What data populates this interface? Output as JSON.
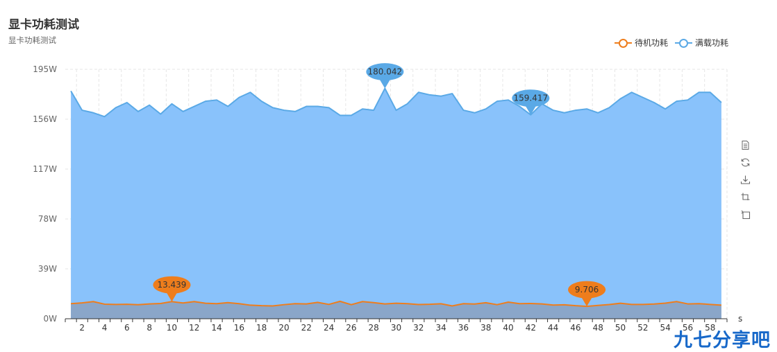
{
  "header": {
    "title": "显卡功耗测试",
    "subtitle": "显卡功耗测试"
  },
  "legend": [
    {
      "name": "待机功耗",
      "color": "#ee7d1c"
    },
    {
      "name": "满载功耗",
      "color": "#5aa9e6"
    }
  ],
  "toolbox": {
    "icons": [
      "data-view-icon",
      "restore-icon",
      "save-image-icon",
      "zoom-icon",
      "zoom-reset-icon"
    ]
  },
  "watermark": "九七分享吧",
  "chart_data": {
    "type": "area",
    "x": [
      1,
      2,
      3,
      4,
      5,
      6,
      7,
      8,
      9,
      10,
      11,
      12,
      13,
      14,
      15,
      16,
      17,
      18,
      19,
      20,
      21,
      22,
      23,
      24,
      25,
      26,
      27,
      28,
      29,
      30,
      31,
      32,
      33,
      34,
      35,
      36,
      37,
      38,
      39,
      40,
      41,
      42,
      43,
      44,
      45,
      46,
      47,
      48,
      49,
      50,
      51,
      52,
      53,
      54,
      55,
      56,
      57,
      58,
      59
    ],
    "x_tick_labels": [
      "2",
      "4",
      "6",
      "8",
      "10",
      "12",
      "14",
      "16",
      "18",
      "20",
      "22",
      "24",
      "26",
      "28",
      "30",
      "32",
      "34",
      "36",
      "38",
      "40",
      "42",
      "44",
      "46",
      "48",
      "50",
      "52",
      "54",
      "56",
      "58"
    ],
    "xlabel": "s",
    "ylim": [
      0,
      195
    ],
    "y_ticks": [
      0,
      39,
      78,
      117,
      156,
      195
    ],
    "y_tick_suffix": "W",
    "grid": true,
    "legend_position": "top-right",
    "series": [
      {
        "name": "待机功耗",
        "color": "#ee7d1c",
        "fill": "#8aa6c9",
        "values": [
          11.8,
          12.4,
          13.4,
          11.4,
          11.2,
          11.3,
          11.0,
          11.6,
          11.9,
          13.4,
          12.3,
          13.4,
          12.1,
          11.8,
          12.6,
          11.8,
          10.6,
          10.2,
          10.0,
          11.0,
          11.8,
          11.6,
          12.8,
          11.2,
          13.6,
          11.0,
          13.4,
          12.6,
          11.6,
          12.1,
          11.8,
          11.1,
          11.3,
          11.7,
          10.0,
          11.8,
          11.5,
          12.5,
          11.0,
          13.0,
          11.8,
          11.9,
          11.6,
          10.7,
          10.9,
          10.2,
          9.706,
          10.4,
          11.1,
          12.1,
          11.2,
          11.2,
          11.5,
          12.2,
          13.4,
          11.6,
          11.8,
          11.2,
          10.6
        ],
        "markers": [
          {
            "label": "13.439",
            "x": 10,
            "value": 13.439
          },
          {
            "label": "9.706",
            "x": 47,
            "value": 9.706
          }
        ]
      },
      {
        "name": "满载功耗",
        "color": "#5aa9e6",
        "fill": "#89c2fb",
        "values": [
          178,
          163,
          161,
          158,
          165,
          169,
          162,
          167,
          160,
          168,
          162,
          166,
          170,
          171,
          166,
          173,
          177,
          170,
          165,
          163,
          162,
          166,
          166,
          165,
          159,
          159,
          164,
          163,
          180.042,
          163,
          168,
          177,
          175,
          174,
          176,
          163,
          161,
          164,
          170,
          171,
          166,
          159.417,
          168,
          163,
          161,
          163,
          164,
          161,
          165,
          172,
          177,
          173,
          169,
          164,
          170,
          171,
          177,
          177,
          169
        ],
        "markers": [
          {
            "label": "180.042",
            "x": 29,
            "value": 180.042
          },
          {
            "label": "159.417",
            "x": 42,
            "value": 159.417
          }
        ]
      }
    ]
  }
}
